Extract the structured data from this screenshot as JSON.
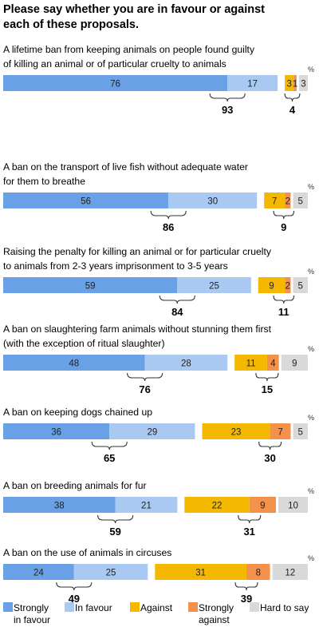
{
  "chart_data": {
    "type": "bar",
    "stacked": true,
    "orientation": "horizontal",
    "title": "Please say whether you are in favour or against each of these proposals.",
    "title_lines": [
      "Please say whether you are in favour or against",
      "each of these proposals."
    ],
    "unit_label": "%",
    "series": [
      {
        "name": "Strongly in favour",
        "legend_lines": [
          "Strongly",
          "in favour"
        ],
        "color": "#6aa0e6"
      },
      {
        "name": "In favour",
        "legend_lines": [
          "In favour"
        ],
        "color": "#a9c9f3"
      },
      {
        "name": "Against",
        "legend_lines": [
          "Against"
        ],
        "color": "#f5b800"
      },
      {
        "name": "Strongly against",
        "legend_lines": [
          "Strongly",
          "against"
        ],
        "color": "#f4914a"
      },
      {
        "name": "Hard to say",
        "legend_lines": [
          "Hard to say"
        ],
        "color": "#d9d9d9"
      }
    ],
    "items": [
      {
        "label_lines": [
          "A lifetime ban from keeping animals on people found guilty",
          "of killing an animal or of particular cruelty to animals"
        ],
        "values": [
          76,
          17,
          3,
          1,
          3
        ],
        "total_favour": 93,
        "total_against": 4
      },
      {
        "label_lines": [
          "A ban on the transport of live fish without adequate water",
          "for them to breathe"
        ],
        "values": [
          56,
          30,
          7,
          2,
          5
        ],
        "total_favour": 86,
        "total_against": 9
      },
      {
        "label_lines": [
          "Raising the penalty for killing an animal or for particular cruelty",
          "to animals from 2-3 years imprisonment to 3-5 years"
        ],
        "values": [
          59,
          25,
          9,
          2,
          5
        ],
        "total_favour": 84,
        "total_against": 11
      },
      {
        "label_lines": [
          "A ban on slaughtering farm animals without stunning them first",
          "(with the exception of ritual slaughter)"
        ],
        "values": [
          48,
          28,
          11,
          4,
          9
        ],
        "total_favour": 76,
        "total_against": 15
      },
      {
        "label_lines": [
          "A ban on keeping dogs chained up"
        ],
        "values": [
          36,
          29,
          23,
          7,
          5
        ],
        "total_favour": 65,
        "total_against": 30
      },
      {
        "label_lines": [
          "A ban on breeding animals for fur"
        ],
        "values": [
          38,
          21,
          22,
          9,
          10
        ],
        "total_favour": 59,
        "total_against": 31
      },
      {
        "label_lines": [
          "A ban on the use of animals in circuses"
        ],
        "values": [
          24,
          25,
          31,
          8,
          12
        ],
        "total_favour": 49,
        "total_against": 39
      }
    ]
  }
}
